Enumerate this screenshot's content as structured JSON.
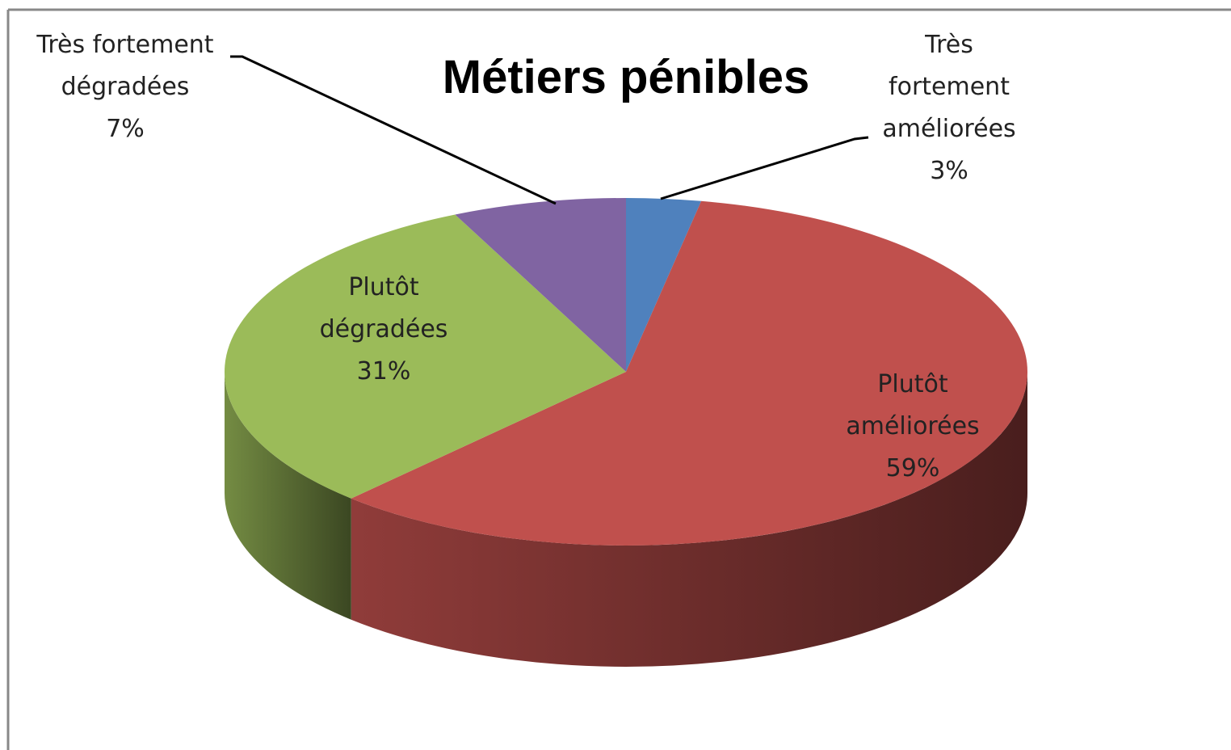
{
  "chart_data": {
    "type": "pie",
    "title": "Métiers pénibles",
    "categories": [
      "Très fortement améliorées",
      "Plutôt améliorées",
      "Plutôt dégradées",
      "Très fortement dégradées"
    ],
    "values": [
      3,
      59,
      31,
      7
    ],
    "value_labels": [
      "3%",
      "59%",
      "31%",
      "7%"
    ],
    "colors": [
      "#4f81bd",
      "#c0504d",
      "#9bbb59",
      "#8064a2"
    ]
  }
}
